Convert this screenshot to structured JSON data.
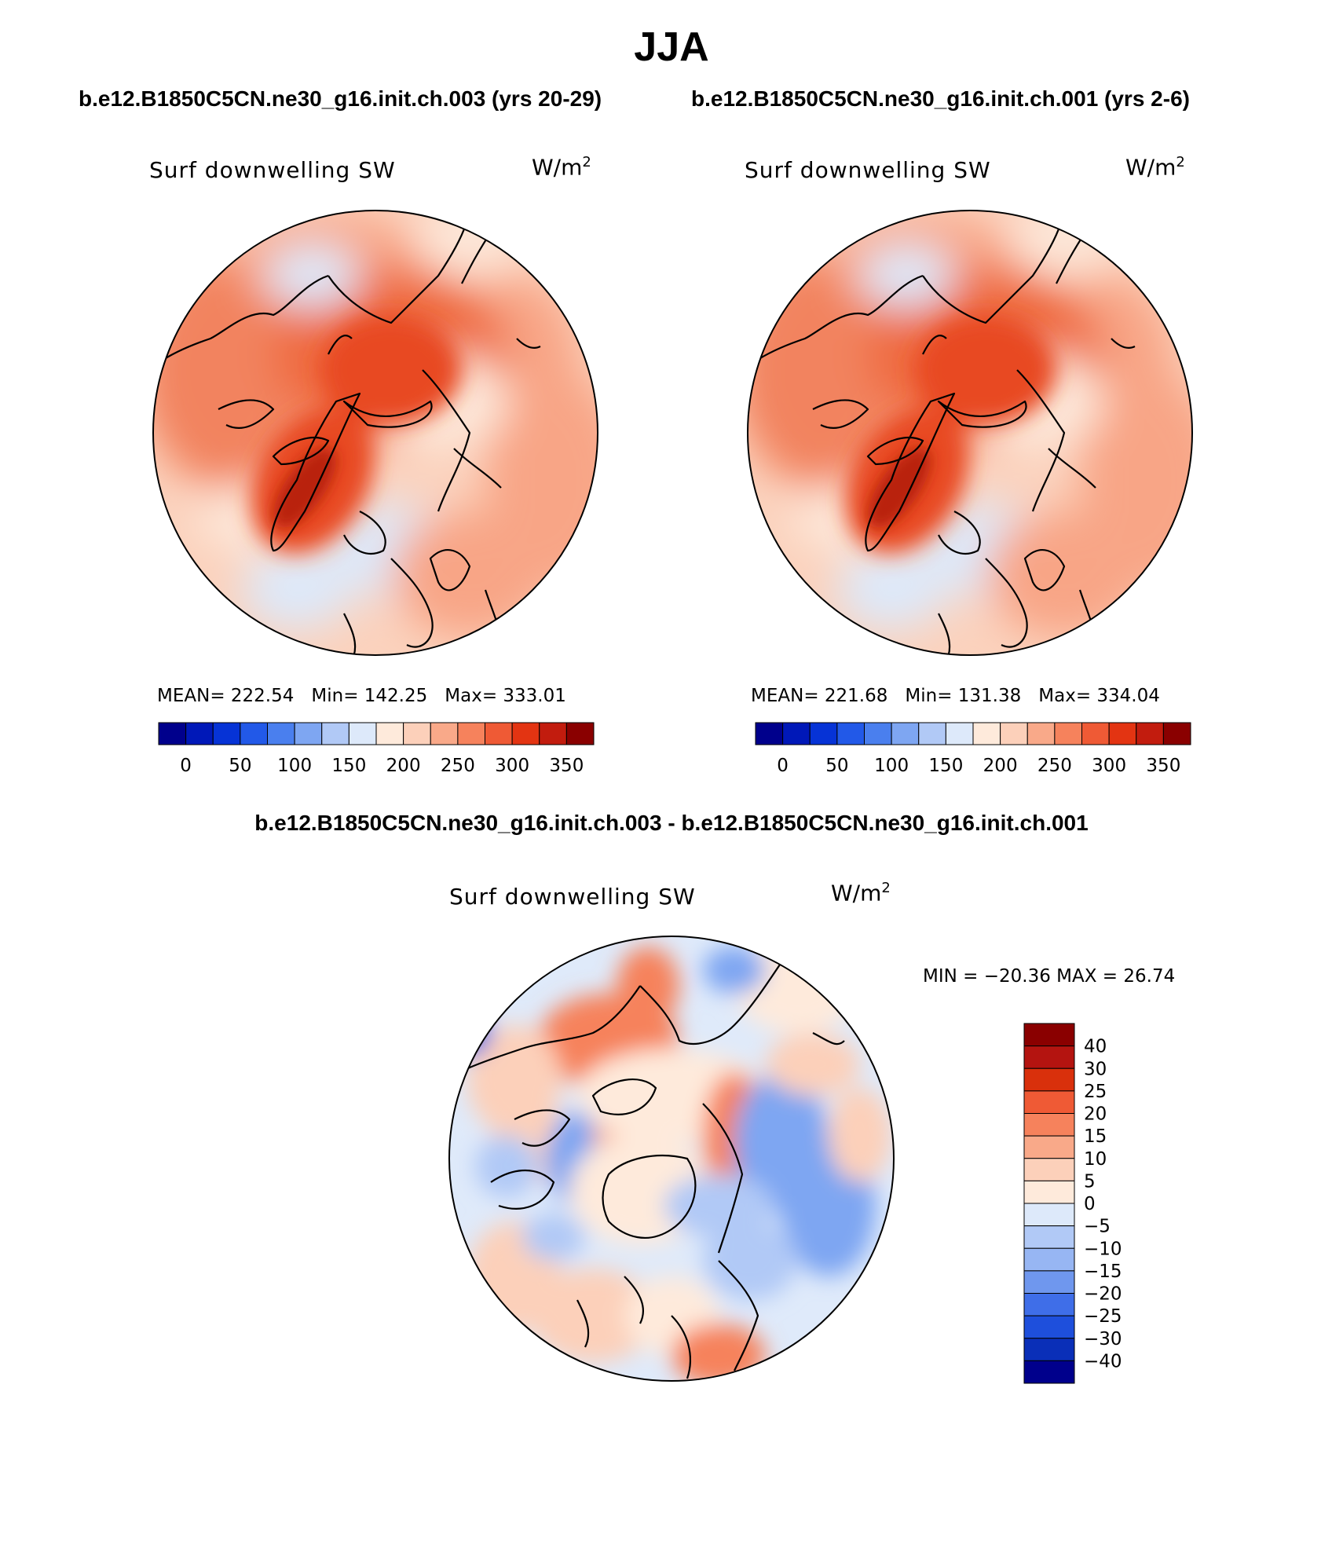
{
  "title": "JJA",
  "panels": [
    {
      "case_title": "b.e12.B1850C5CN.ne30_g16.init.ch.003 (yrs 20-29)",
      "variable": "Surf downwelling SW",
      "units_base": "W/m",
      "units_exp": "2",
      "stats": {
        "mean": "MEAN= 222.54",
        "min": "Min= 142.25",
        "max": "Max= 333.01"
      }
    },
    {
      "case_title": "b.e12.B1850C5CN.ne30_g16.init.ch.001 (yrs 2-6)",
      "variable": "Surf downwelling SW",
      "units_base": "W/m",
      "units_exp": "2",
      "stats": {
        "mean": "MEAN= 221.68",
        "min": "Min= 131.38",
        "max": "Max= 334.04"
      }
    }
  ],
  "abs_colorbar": {
    "colors": [
      "#00008c",
      "#0018b8",
      "#0633d6",
      "#2259e8",
      "#4a7fee",
      "#7ea6f2",
      "#b1c9f6",
      "#dde9fa",
      "#feeadb",
      "#fcd0ba",
      "#f9a989",
      "#f6825c",
      "#ef5a35",
      "#e33412",
      "#c21c0e",
      "#8a0000"
    ],
    "tick_labels": [
      "0",
      "50",
      "100",
      "150",
      "200",
      "250",
      "300",
      "350"
    ]
  },
  "diff": {
    "title": "b.e12.B1850C5CN.ne30_g16.init.ch.003 - b.e12.B1850C5CN.ne30_g16.init.ch.001",
    "variable": "Surf downwelling SW",
    "units_base": "W/m",
    "units_exp": "2",
    "minmax": "MIN = −20.36 MAX =  26.74",
    "colorbar": {
      "colors": [
        "#8a0000",
        "#b41410",
        "#d9300c",
        "#ef5a35",
        "#f6825c",
        "#f9a989",
        "#fcd0ba",
        "#feeadb",
        "#dde9fa",
        "#b1c9f6",
        "#97b6f3",
        "#6f97ee",
        "#3f6ee8",
        "#1e4fdc",
        "#0a2fb8",
        "#00008c"
      ],
      "tick_labels": [
        "40",
        "30",
        "25",
        "20",
        "15",
        "10",
        "5",
        "0",
        "−5",
        "−10",
        "−15",
        "−20",
        "−25",
        "−30",
        "−40"
      ]
    }
  }
}
